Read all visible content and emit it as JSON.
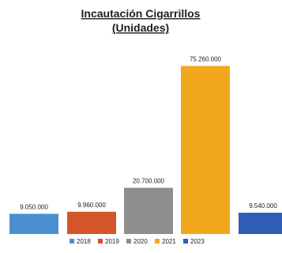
{
  "chart_data": {
    "type": "bar",
    "title": "Incautación Cigarrillos",
    "subtitle": "(Unidades)",
    "categories": [
      "2018",
      "2019",
      "2020",
      "2021",
      "2023"
    ],
    "values": [
      9050000,
      9960000,
      20700000,
      75260000,
      9540000
    ],
    "data_labels": [
      "9.050.000",
      "9.960.000",
      "20.700.000",
      "75.260.000",
      "9.540.000"
    ],
    "colors": [
      "#4a90d0",
      "#d4552a",
      "#8e8e8e",
      "#f2a81d",
      "#2f5db3"
    ],
    "ylim": [
      0,
      80000000
    ],
    "grid": false,
    "legend_position": "bottom"
  }
}
